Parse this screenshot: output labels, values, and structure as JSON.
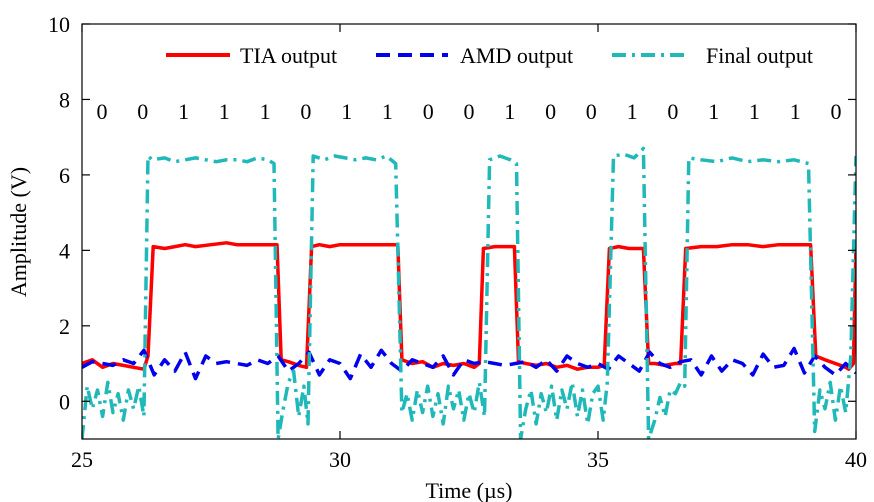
{
  "chart_data": {
    "type": "line",
    "xlabel": "Time (µs)",
    "ylabel": "Amplitude (V)",
    "xlim": [
      25,
      40
    ],
    "ylim": [
      -1,
      10
    ],
    "xticks": [
      25,
      30,
      35,
      40
    ],
    "yticks": [
      0,
      2,
      4,
      6,
      8,
      10
    ],
    "grid": false,
    "legend_position": "top-right",
    "bit_sequence": [
      "0",
      "0",
      "1",
      "1",
      "1",
      "0",
      "1",
      "1",
      "0",
      "0",
      "1",
      "0",
      "0",
      "1",
      "0",
      "1",
      "1",
      "1",
      "0"
    ],
    "bit_label_y": 7.7,
    "series": [
      {
        "name": "TIA output",
        "color": "#ff0000",
        "dash": "solid",
        "x": [
          25.0,
          25.2,
          25.4,
          25.6,
          25.8,
          26.0,
          26.2,
          26.28,
          26.38,
          26.6,
          26.8,
          27.0,
          27.2,
          27.5,
          27.8,
          28.0,
          28.2,
          28.4,
          28.6,
          28.78,
          28.86,
          29.0,
          29.2,
          29.35,
          29.45,
          29.6,
          29.8,
          30.0,
          30.2,
          30.5,
          30.8,
          31.0,
          31.12,
          31.2,
          31.4,
          31.6,
          31.8,
          32.0,
          32.2,
          32.4,
          32.6,
          32.7,
          32.78,
          33.0,
          33.2,
          33.38,
          33.46,
          33.6,
          33.8,
          34.0,
          34.2,
          34.4,
          34.6,
          34.8,
          35.0,
          35.12,
          35.22,
          35.4,
          35.6,
          35.8,
          35.88,
          35.98,
          36.1,
          36.3,
          36.5,
          36.6,
          36.7,
          37.0,
          37.3,
          37.6,
          37.9,
          38.2,
          38.5,
          38.8,
          39.0,
          39.12,
          39.22,
          39.4,
          39.6,
          39.8,
          39.86,
          39.95,
          40.0
        ],
        "y": [
          1.0,
          1.1,
          0.9,
          1.0,
          0.95,
          0.9,
          0.85,
          1.2,
          4.1,
          4.05,
          4.1,
          4.15,
          4.1,
          4.15,
          4.2,
          4.15,
          4.15,
          4.15,
          4.15,
          4.15,
          1.1,
          1.05,
          0.95,
          0.9,
          4.1,
          4.15,
          4.1,
          4.15,
          4.15,
          4.15,
          4.15,
          4.15,
          4.15,
          1.1,
          1.0,
          1.05,
          0.9,
          1.0,
          0.95,
          1.0,
          0.9,
          1.0,
          4.05,
          4.1,
          4.1,
          4.1,
          1.05,
          1.0,
          0.95,
          1.0,
          0.9,
          0.95,
          0.85,
          0.9,
          0.9,
          0.95,
          4.05,
          4.1,
          4.05,
          4.05,
          4.05,
          1.0,
          1.0,
          0.95,
          1.0,
          1.0,
          4.05,
          4.1,
          4.1,
          4.15,
          4.15,
          4.1,
          4.15,
          4.15,
          4.15,
          4.15,
          1.2,
          1.1,
          1.0,
          0.9,
          0.85,
          1.0,
          4.1
        ]
      },
      {
        "name": "AMD output",
        "color": "#0000ee",
        "dash": "dashed",
        "x": [
          25.0,
          25.2,
          25.4,
          25.6,
          25.8,
          26.0,
          26.2,
          26.4,
          26.6,
          26.8,
          27.0,
          27.2,
          27.4,
          27.6,
          27.8,
          28.0,
          28.2,
          28.4,
          28.6,
          28.8,
          29.0,
          29.2,
          29.4,
          29.6,
          29.8,
          30.0,
          30.2,
          30.4,
          30.6,
          30.8,
          31.0,
          31.2,
          31.4,
          31.6,
          31.8,
          32.0,
          32.2,
          32.4,
          32.6,
          32.8,
          33.0,
          33.2,
          33.4,
          33.6,
          33.8,
          34.0,
          34.2,
          34.4,
          34.6,
          34.8,
          35.0,
          35.2,
          35.4,
          35.6,
          35.8,
          36.0,
          36.2,
          36.4,
          36.6,
          36.8,
          37.0,
          37.2,
          37.4,
          37.6,
          37.8,
          38.0,
          38.2,
          38.4,
          38.6,
          38.8,
          39.0,
          39.2,
          39.4,
          39.6,
          39.8,
          40.0
        ],
        "y": [
          0.9,
          1.05,
          1.0,
          0.95,
          1.1,
          1.0,
          1.35,
          0.7,
          1.1,
          0.8,
          1.3,
          0.6,
          1.2,
          1.0,
          1.05,
          1.0,
          0.95,
          1.1,
          1.0,
          1.2,
          0.8,
          1.0,
          1.3,
          0.7,
          1.1,
          1.0,
          0.6,
          1.25,
          0.9,
          1.35,
          1.0,
          0.8,
          1.1,
          1.0,
          0.9,
          1.2,
          0.7,
          1.1,
          1.0,
          1.05,
          1.0,
          0.95,
          1.0,
          1.05,
          0.9,
          1.1,
          0.8,
          1.2,
          1.0,
          0.9,
          1.0,
          0.85,
          1.2,
          1.0,
          0.8,
          1.3,
          1.0,
          0.9,
          1.05,
          1.1,
          0.7,
          1.2,
          0.8,
          1.1,
          1.0,
          0.7,
          1.25,
          0.9,
          0.95,
          1.4,
          0.75,
          1.2,
          0.9,
          0.7,
          1.0,
          0.75
        ]
      },
      {
        "name": "Final output",
        "color": "#20b8b8",
        "dash": "dashdot",
        "x": [
          25.0,
          25.1,
          25.2,
          25.3,
          25.4,
          25.5,
          25.6,
          25.7,
          25.8,
          25.9,
          26.0,
          26.1,
          26.2,
          26.28,
          26.36,
          26.6,
          26.8,
          27.0,
          27.2,
          27.4,
          27.6,
          27.8,
          28.0,
          28.2,
          28.4,
          28.6,
          28.72,
          28.8,
          28.9,
          29.0,
          29.1,
          29.2,
          29.3,
          29.38,
          29.48,
          29.7,
          29.9,
          30.1,
          30.3,
          30.5,
          30.7,
          30.9,
          31.08,
          31.2,
          31.3,
          31.4,
          31.5,
          31.6,
          31.7,
          31.8,
          31.9,
          32.0,
          32.1,
          32.2,
          32.3,
          32.4,
          32.5,
          32.6,
          32.7,
          32.8,
          32.9,
          33.1,
          33.3,
          33.42,
          33.5,
          33.6,
          33.7,
          33.8,
          33.9,
          34.0,
          34.1,
          34.2,
          34.3,
          34.4,
          34.5,
          34.6,
          34.7,
          34.8,
          34.9,
          35.0,
          35.1,
          35.18,
          35.3,
          35.5,
          35.7,
          35.88,
          35.98,
          36.1,
          36.2,
          36.3,
          36.4,
          36.5,
          36.6,
          36.68,
          36.76,
          37.0,
          37.3,
          37.6,
          37.9,
          38.2,
          38.5,
          38.8,
          39.08,
          39.2,
          39.3,
          39.4,
          39.5,
          39.6,
          39.7,
          39.8,
          39.9,
          40.0
        ],
        "y": [
          -1.0,
          0.4,
          -0.2,
          0.3,
          -0.4,
          0.5,
          -0.3,
          0.2,
          -0.5,
          0.3,
          -0.2,
          0.4,
          -0.4,
          6.5,
          6.4,
          6.45,
          6.35,
          6.4,
          6.45,
          6.4,
          6.35,
          6.4,
          6.4,
          6.35,
          6.45,
          6.4,
          6.3,
          -1.0,
          -0.2,
          0.5,
          0.8,
          -0.4,
          0.4,
          -0.6,
          6.5,
          6.4,
          6.5,
          6.45,
          6.4,
          6.45,
          6.4,
          6.5,
          6.3,
          -0.3,
          0.2,
          -0.5,
          0.3,
          -0.3,
          0.4,
          -0.4,
          0.2,
          -0.6,
          0.4,
          -0.2,
          0.3,
          -0.5,
          0.2,
          -0.3,
          0.5,
          -0.4,
          6.4,
          6.5,
          6.4,
          6.3,
          -1.0,
          -0.2,
          0.3,
          -0.6,
          0.2,
          -0.3,
          0.4,
          -0.5,
          0.3,
          -0.2,
          0.5,
          -0.4,
          0.3,
          -0.6,
          0.2,
          0.4,
          -0.5,
          0.5,
          6.5,
          6.55,
          6.45,
          6.7,
          -1.0,
          -0.5,
          0.1,
          -0.4,
          0.3,
          0.2,
          0.5,
          0.4,
          6.45,
          6.4,
          6.35,
          6.45,
          6.35,
          6.4,
          6.35,
          6.4,
          6.3,
          -0.8,
          0.3,
          -0.2,
          0.5,
          -0.5,
          0.4,
          -0.3,
          1.2,
          6.5
        ]
      }
    ]
  }
}
